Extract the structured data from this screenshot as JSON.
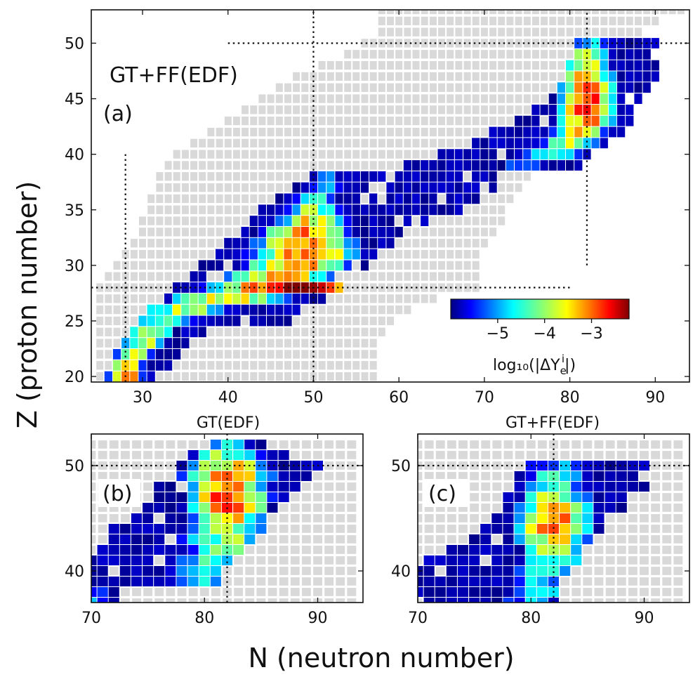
{
  "chart_data": [
    {
      "panel": "a",
      "type": "heatmap",
      "title": "",
      "annotation_label": "GT+FF(EDF)",
      "panel_label": "(a)",
      "xlabel": "N (neutron number)",
      "ylabel": "Z (proton number)",
      "xlim": [
        24,
        94
      ],
      "ylim": [
        19.5,
        53
      ],
      "xticks": [
        "30",
        "40",
        "50",
        "60",
        "70",
        "80",
        "90"
      ],
      "yticks": [
        "20",
        "25",
        "30",
        "35",
        "40",
        "45",
        "50"
      ],
      "guides": {
        "vertical": [
          {
            "n": 28,
            "z_range": [
              19.5,
              40
            ]
          },
          {
            "n": 50,
            "z_range": [
              19.5,
              53
            ]
          },
          {
            "n": 82,
            "z_range": [
              30,
              53
            ]
          }
        ],
        "horizontal": [
          {
            "z": 28,
            "n_range": [
              24,
              80
            ]
          },
          {
            "z": 50,
            "n_range": [
              40,
              94
            ]
          }
        ]
      },
      "colorbar": {
        "colormap": "jet",
        "range": [
          -6.0,
          -2.2
        ],
        "ticks": [
          "−5",
          "−4",
          "−3"
        ],
        "label": "log₁₀(|ΔY",
        "label_sub": "e",
        "label_sup": "i",
        "label_end": "|)",
        "position": "lower-right"
      },
      "colored_bands": [
        {
          "z": 20,
          "n_min": 26,
          "n_max": 32,
          "peak_n": 28,
          "peak_value": -2.8,
          "width": 1.6
        },
        {
          "z": 21,
          "n_min": 27,
          "n_max": 33,
          "peak_n": 28,
          "peak_value": -3.4,
          "width": 2.0
        },
        {
          "z": 22,
          "n_min": 27,
          "n_max": 34,
          "peak_n": 29,
          "peak_value": -3.7,
          "width": 2.2
        },
        {
          "z": 23,
          "n_min": 28,
          "n_max": 35,
          "peak_n": 30,
          "peak_value": -3.9,
          "width": 2.6
        },
        {
          "z": 24,
          "n_min": 29,
          "n_max": 37,
          "peak_n": 31,
          "peak_value": -4.1,
          "width": 3.0
        },
        {
          "z": 25,
          "n_min": 30,
          "n_max": 47,
          "peak_n": 33,
          "peak_value": -4.3,
          "width": 4.0
        },
        {
          "z": 26,
          "n_min": 31,
          "n_max": 49,
          "peak_n": 35,
          "peak_value": -4.0,
          "width": 5.0
        },
        {
          "z": 27,
          "n_min": 33,
          "n_max": 51,
          "peak_n": 40,
          "peak_value": -3.6,
          "width": 6.5
        },
        {
          "z": 28,
          "n_min": 34,
          "n_max": 53,
          "peak_n": 48,
          "peak_value": -2.5,
          "width": 8.0
        },
        {
          "z": 29,
          "n_min": 36,
          "n_max": 52,
          "peak_n": 46,
          "peak_value": -3.4,
          "width": 5.5
        },
        {
          "z": 30,
          "n_min": 37,
          "n_max": 56,
          "peak_n": 48,
          "peak_value": -3.3,
          "width": 5.5
        },
        {
          "z": 31,
          "n_min": 39,
          "n_max": 57,
          "peak_n": 49,
          "peak_value": -3.2,
          "width": 5.5
        },
        {
          "z": 32,
          "n_min": 40,
          "n_max": 59,
          "peak_n": 49,
          "peak_value": -3.2,
          "width": 5.0
        },
        {
          "z": 33,
          "n_min": 42,
          "n_max": 60,
          "peak_n": 49,
          "peak_value": -3.3,
          "width": 4.5
        },
        {
          "z": 34,
          "n_min": 43,
          "n_max": 63,
          "peak_n": 50,
          "peak_value": -3.6,
          "width": 4.0
        },
        {
          "z": 35,
          "n_min": 44,
          "n_max": 67,
          "peak_n": 50,
          "peak_value": -4.0,
          "width": 3.5
        },
        {
          "z": 36,
          "n_min": 46,
          "n_max": 69,
          "peak_n": 50,
          "peak_value": -4.5,
          "width": 3.0
        },
        {
          "z": 37,
          "n_min": 48,
          "n_max": 71,
          "peak_n": 51,
          "peak_value": -4.9,
          "width": 3.0
        },
        {
          "z": 38,
          "n_min": 50,
          "n_max": 71,
          "peak_n": 52,
          "peak_value": -5.3,
          "width": 3.0
        },
        {
          "z": 39,
          "n_min": 61,
          "n_max": 81,
          "peak_n": 75,
          "peak_value": -5.0,
          "width": 4.0
        },
        {
          "z": 40,
          "n_min": 64,
          "n_max": 82,
          "peak_n": 78,
          "peak_value": -4.5,
          "width": 4.0
        },
        {
          "z": 41,
          "n_min": 68,
          "n_max": 84,
          "peak_n": 80,
          "peak_value": -4.0,
          "width": 3.5
        },
        {
          "z": 42,
          "n_min": 71,
          "n_max": 86,
          "peak_n": 81,
          "peak_value": -3.6,
          "width": 3.0
        },
        {
          "z": 43,
          "n_min": 74,
          "n_max": 87,
          "peak_n": 82,
          "peak_value": -3.2,
          "width": 3.0
        },
        {
          "z": 44,
          "n_min": 76,
          "n_max": 88,
          "peak_n": 82,
          "peak_value": -2.7,
          "width": 2.8
        },
        {
          "z": 45,
          "n_min": 78,
          "n_max": 88,
          "peak_n": 82,
          "peak_value": -2.9,
          "width": 2.8
        },
        {
          "z": 46,
          "n_min": 79,
          "n_max": 89,
          "peak_n": 82,
          "peak_value": -3.1,
          "width": 2.8
        },
        {
          "z": 47,
          "n_min": 80,
          "n_max": 90,
          "peak_n": 82,
          "peak_value": -3.3,
          "width": 2.8
        },
        {
          "z": 48,
          "n_min": 80,
          "n_max": 90,
          "peak_n": 82,
          "peak_value": -3.6,
          "width": 2.8
        },
        {
          "z": 49,
          "n_min": 81,
          "n_max": 90,
          "peak_n": 82,
          "peak_value": -4.1,
          "width": 2.5
        },
        {
          "z": 50,
          "n_min": 81,
          "n_max": 90,
          "peak_n": 82,
          "peak_value": -4.6,
          "width": 2.5
        }
      ],
      "grey_bands": [
        {
          "z": 20,
          "n_min": 25,
          "n_max": 57
        },
        {
          "z": 21,
          "n_min": 25,
          "n_max": 57
        },
        {
          "z": 22,
          "n_min": 25,
          "n_max": 57
        },
        {
          "z": 23,
          "n_min": 25,
          "n_max": 57
        },
        {
          "z": 24,
          "n_min": 25,
          "n_max": 58
        },
        {
          "z": 25,
          "n_min": 25,
          "n_max": 59
        },
        {
          "z": 26,
          "n_min": 25,
          "n_max": 61
        },
        {
          "z": 27,
          "n_min": 25,
          "n_max": 64
        },
        {
          "z": 28,
          "n_min": 25,
          "n_max": 69
        },
        {
          "z": 29,
          "n_min": 26,
          "n_max": 69
        },
        {
          "z": 30,
          "n_min": 27,
          "n_max": 69
        },
        {
          "z": 31,
          "n_min": 28,
          "n_max": 69
        },
        {
          "z": 32,
          "n_min": 29,
          "n_max": 70
        },
        {
          "z": 33,
          "n_min": 30,
          "n_max": 71
        },
        {
          "z": 34,
          "n_min": 30,
          "n_max": 72
        },
        {
          "z": 35,
          "n_min": 31,
          "n_max": 72
        },
        {
          "z": 36,
          "n_min": 31,
          "n_max": 73
        },
        {
          "z": 37,
          "n_min": 32,
          "n_max": 74
        },
        {
          "z": 38,
          "n_min": 32,
          "n_max": 75
        },
        {
          "z": 39,
          "n_min": 33,
          "n_max": 76
        },
        {
          "z": 40,
          "n_min": 34,
          "n_max": 76
        },
        {
          "z": 41,
          "n_min": 36,
          "n_max": 77
        },
        {
          "z": 42,
          "n_min": 38,
          "n_max": 78
        },
        {
          "z": 43,
          "n_min": 40,
          "n_max": 79
        },
        {
          "z": 44,
          "n_min": 42,
          "n_max": 80
        },
        {
          "z": 45,
          "n_min": 44,
          "n_max": 81
        },
        {
          "z": 46,
          "n_min": 46,
          "n_max": 82
        },
        {
          "z": 47,
          "n_min": 48,
          "n_max": 83
        },
        {
          "z": 48,
          "n_min": 51,
          "n_max": 84
        },
        {
          "z": 49,
          "n_min": 54,
          "n_max": 85
        },
        {
          "z": 50,
          "n_min": 56,
          "n_max": 86
        },
        {
          "z": 51,
          "n_min": 58,
          "n_max": 88
        },
        {
          "z": 52,
          "n_min": 58,
          "n_max": 90
        },
        {
          "z": 53,
          "n_min": 58,
          "n_max": 93
        }
      ]
    },
    {
      "panel": "b",
      "type": "heatmap",
      "title": "GT(EDF)",
      "panel_label": "(b)",
      "xlim": [
        70,
        94
      ],
      "ylim": [
        37,
        53
      ],
      "xticks": [
        "70",
        "80",
        "90"
      ],
      "yticks": [
        "40",
        "50"
      ],
      "guides": {
        "vertical": [
          {
            "n": 82
          }
        ],
        "horizontal": [
          {
            "z": 50
          }
        ]
      },
      "colored_bands": [
        {
          "z": 37,
          "n_min": 70,
          "n_max": 72,
          "peak_n": 70,
          "peak_value": -5.2,
          "width": 2.0
        },
        {
          "z": 38,
          "n_min": 70,
          "n_max": 72,
          "peak_n": 70,
          "peak_value": -5.2,
          "width": 2.0
        },
        {
          "z": 39,
          "n_min": 70,
          "n_max": 81,
          "peak_n": 80,
          "peak_value": -4.8,
          "width": 4.0
        },
        {
          "z": 40,
          "n_min": 70,
          "n_max": 81,
          "peak_n": 80,
          "peak_value": -4.7,
          "width": 4.0
        },
        {
          "z": 41,
          "n_min": 70,
          "n_max": 82,
          "peak_n": 81,
          "peak_value": -4.5,
          "width": 4.0
        },
        {
          "z": 42,
          "n_min": 71,
          "n_max": 83,
          "peak_n": 82,
          "peak_value": -4.3,
          "width": 4.0
        },
        {
          "z": 43,
          "n_min": 72,
          "n_max": 84,
          "peak_n": 82,
          "peak_value": -4.1,
          "width": 4.0
        },
        {
          "z": 44,
          "n_min": 72,
          "n_max": 85,
          "peak_n": 82,
          "peak_value": -3.9,
          "width": 3.5
        },
        {
          "z": 45,
          "n_min": 74,
          "n_max": 85,
          "peak_n": 82,
          "peak_value": -3.5,
          "width": 3.0
        },
        {
          "z": 46,
          "n_min": 75,
          "n_max": 86,
          "peak_n": 82,
          "peak_value": -3.0,
          "width": 3.0
        },
        {
          "z": 47,
          "n_min": 76,
          "n_max": 87,
          "peak_n": 82,
          "peak_value": -2.8,
          "width": 3.0
        },
        {
          "z": 48,
          "n_min": 76,
          "n_max": 88,
          "peak_n": 82,
          "peak_value": -3.0,
          "width": 3.0
        },
        {
          "z": 49,
          "n_min": 77,
          "n_max": 90,
          "peak_n": 82,
          "peak_value": -3.3,
          "width": 3.5
        },
        {
          "z": 50,
          "n_min": 78,
          "n_max": 90,
          "peak_n": 82,
          "peak_value": -3.5,
          "width": 3.5
        },
        {
          "z": 51,
          "n_min": 79,
          "n_max": 87,
          "peak_n": 82,
          "peak_value": -4.0,
          "width": 3.0
        },
        {
          "z": 52,
          "n_min": 81,
          "n_max": 85,
          "peak_n": 82,
          "peak_value": -4.8,
          "width": 2.0
        }
      ],
      "grey_bands": [
        {
          "z": 37,
          "n_min": 70,
          "n_max": 93
        },
        {
          "z": 38,
          "n_min": 70,
          "n_max": 93
        },
        {
          "z": 39,
          "n_min": 70,
          "n_max": 93
        },
        {
          "z": 40,
          "n_min": 70,
          "n_max": 93
        },
        {
          "z": 41,
          "n_min": 70,
          "n_max": 93
        },
        {
          "z": 42,
          "n_min": 70,
          "n_max": 93
        },
        {
          "z": 43,
          "n_min": 70,
          "n_max": 93
        },
        {
          "z": 44,
          "n_min": 70,
          "n_max": 93
        },
        {
          "z": 45,
          "n_min": 70,
          "n_max": 93
        },
        {
          "z": 46,
          "n_min": 70,
          "n_max": 93
        },
        {
          "z": 47,
          "n_min": 70,
          "n_max": 93
        },
        {
          "z": 48,
          "n_min": 70,
          "n_max": 93
        },
        {
          "z": 49,
          "n_min": 70,
          "n_max": 93
        },
        {
          "z": 50,
          "n_min": 70,
          "n_max": 93
        },
        {
          "z": 51,
          "n_min": 70,
          "n_max": 93
        },
        {
          "z": 52,
          "n_min": 70,
          "n_max": 93
        }
      ]
    },
    {
      "panel": "c",
      "type": "heatmap",
      "title": "GT+FF(EDF)",
      "panel_label": "(c)",
      "xlim": [
        70,
        94
      ],
      "ylim": [
        37,
        53
      ],
      "xticks": [
        "70",
        "80",
        "90"
      ],
      "yticks": [
        "40",
        "50"
      ],
      "guides": {
        "vertical": [
          {
            "n": 82
          }
        ],
        "horizontal": [
          {
            "z": 50
          }
        ]
      },
      "colored_bands": [
        {
          "z": 37,
          "n_min": 70,
          "n_max": 82,
          "peak_n": 80,
          "peak_value": -5.0,
          "width": 3.0
        },
        {
          "z": 38,
          "n_min": 70,
          "n_max": 82,
          "peak_n": 81,
          "peak_value": -4.8,
          "width": 3.0
        },
        {
          "z": 39,
          "n_min": 70,
          "n_max": 82,
          "peak_n": 81,
          "peak_value": -4.7,
          "width": 3.0
        },
        {
          "z": 40,
          "n_min": 70,
          "n_max": 83,
          "peak_n": 81,
          "peak_value": -4.5,
          "width": 3.0
        },
        {
          "z": 41,
          "n_min": 71,
          "n_max": 84,
          "peak_n": 82,
          "peak_value": -4.3,
          "width": 3.0
        },
        {
          "z": 42,
          "n_min": 73,
          "n_max": 84,
          "peak_n": 82,
          "peak_value": -4.0,
          "width": 3.0
        },
        {
          "z": 43,
          "n_min": 75,
          "n_max": 85,
          "peak_n": 82,
          "peak_value": -3.6,
          "width": 3.0
        },
        {
          "z": 44,
          "n_min": 76,
          "n_max": 86,
          "peak_n": 82,
          "peak_value": -3.0,
          "width": 3.0
        },
        {
          "z": 45,
          "n_min": 77,
          "n_max": 87,
          "peak_n": 82,
          "peak_value": -3.2,
          "width": 3.0
        },
        {
          "z": 46,
          "n_min": 78,
          "n_max": 88,
          "peak_n": 82,
          "peak_value": -3.5,
          "width": 3.0
        },
        {
          "z": 47,
          "n_min": 78,
          "n_max": 88,
          "peak_n": 82,
          "peak_value": -3.8,
          "width": 3.0
        },
        {
          "z": 48,
          "n_min": 79,
          "n_max": 90,
          "peak_n": 82,
          "peak_value": -4.2,
          "width": 3.0
        },
        {
          "z": 49,
          "n_min": 79,
          "n_max": 90,
          "peak_n": 82,
          "peak_value": -4.6,
          "width": 3.0
        },
        {
          "z": 50,
          "n_min": 80,
          "n_max": 90,
          "peak_n": 82,
          "peak_value": -4.9,
          "width": 3.0
        }
      ],
      "grey_bands": [
        {
          "z": 37,
          "n_min": 70,
          "n_max": 93
        },
        {
          "z": 38,
          "n_min": 70,
          "n_max": 93
        },
        {
          "z": 39,
          "n_min": 70,
          "n_max": 93
        },
        {
          "z": 40,
          "n_min": 70,
          "n_max": 93
        },
        {
          "z": 41,
          "n_min": 70,
          "n_max": 93
        },
        {
          "z": 42,
          "n_min": 70,
          "n_max": 93
        },
        {
          "z": 43,
          "n_min": 70,
          "n_max": 93
        },
        {
          "z": 44,
          "n_min": 70,
          "n_max": 93
        },
        {
          "z": 45,
          "n_min": 70,
          "n_max": 93
        },
        {
          "z": 46,
          "n_min": 70,
          "n_max": 93
        },
        {
          "z": 47,
          "n_min": 70,
          "n_max": 93
        },
        {
          "z": 48,
          "n_min": 70,
          "n_max": 93
        },
        {
          "z": 49,
          "n_min": 70,
          "n_max": 93
        },
        {
          "z": 50,
          "n_min": 70,
          "n_max": 93
        },
        {
          "z": 51,
          "n_min": 70,
          "n_max": 93
        },
        {
          "z": 52,
          "n_min": 70,
          "n_max": 93
        }
      ]
    }
  ],
  "colors": {
    "empty_cell": "#d9d9d9",
    "guide": "#111111",
    "frame": "#111111"
  }
}
